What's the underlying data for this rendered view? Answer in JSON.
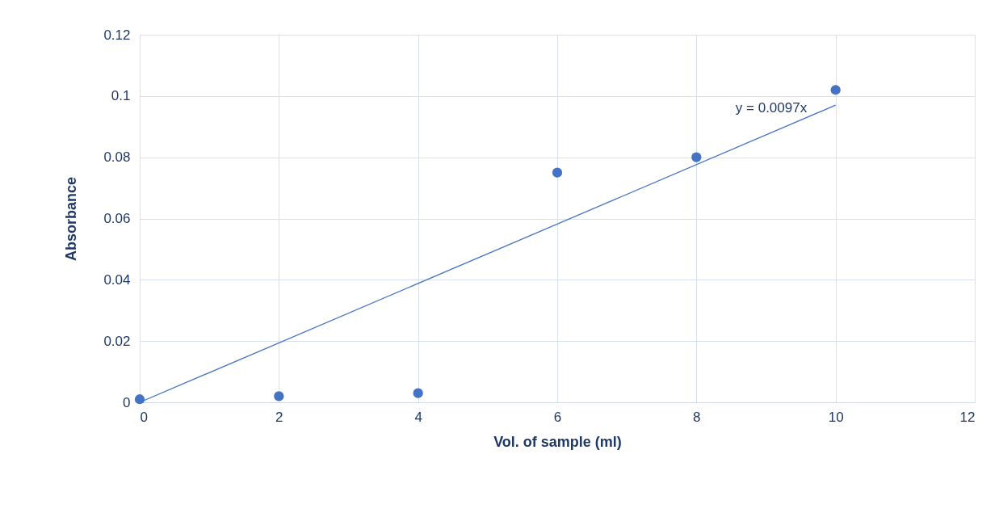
{
  "chart_data": {
    "type": "scatter",
    "xlabel": "Vol. of sample (ml)",
    "ylabel": "Absorbance",
    "x": [
      0,
      2,
      4,
      6,
      8,
      10
    ],
    "series": [
      {
        "color": "#4472c4",
        "marker": "circle",
        "values": [
          0.001,
          0.002,
          0.003,
          0.075,
          0.08,
          0.102
        ]
      },
      {
        "type": "line",
        "color": "#4472c4",
        "marker": "none",
        "x": [
          0,
          10
        ],
        "values": [
          0,
          0.097
        ]
      }
    ],
    "xlim": [
      0,
      12
    ],
    "xticks": [
      0,
      2,
      4,
      6,
      8,
      10,
      12
    ],
    "ylim": [
      0,
      0.12
    ],
    "yticks": [
      0,
      0.02,
      0.04,
      0.06,
      0.08,
      0.1,
      0.12
    ],
    "grid": true,
    "line_style": "solid",
    "annotations": [
      "y = 0.0097x"
    ]
  }
}
